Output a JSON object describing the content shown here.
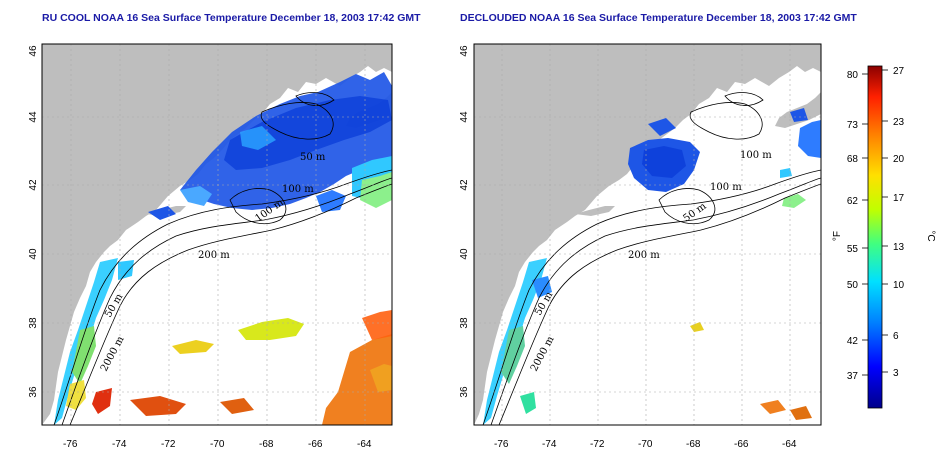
{
  "panels": [
    {
      "title": "RU COOL NOAA 16 Sea Surface Temperature December 18, 2003 17:42 GMT",
      "x_ticks": [
        "-76",
        "-74",
        "-72",
        "-70",
        "-68",
        "-66",
        "-64"
      ],
      "y_ticks": [
        "46",
        "44",
        "42",
        "40",
        "38",
        "36"
      ],
      "contours": [
        "50 m",
        "100 m",
        "100 m",
        "200 m",
        "50 m",
        "2000 m"
      ]
    },
    {
      "title": "DECLOUDED NOAA 16 Sea Surface Temperature December 18, 2003 17:42 GMT",
      "x_ticks": [
        "-76",
        "-74",
        "-72",
        "-70",
        "-68",
        "-66",
        "-64"
      ],
      "y_ticks": [
        "46",
        "44",
        "42",
        "40",
        "38",
        "36"
      ],
      "contours": [
        "100 m",
        "100 m",
        "50 m",
        "200 m",
        "50 m",
        "2000 m"
      ]
    }
  ],
  "colorbar": {
    "unit_f": "°F",
    "unit_c": "°C",
    "f_ticks": [
      "80",
      "73",
      "68",
      "62",
      "55",
      "50",
      "42",
      "37"
    ],
    "c_ticks": [
      "27",
      "23",
      "20",
      "17",
      "13",
      "10",
      "6",
      "3"
    ],
    "colors": [
      "#00008b",
      "#0000ff",
      "#0080ff",
      "#00e0ff",
      "#40ff80",
      "#c0ff00",
      "#ffe000",
      "#ff8000",
      "#ff2000",
      "#8b0000"
    ]
  }
}
